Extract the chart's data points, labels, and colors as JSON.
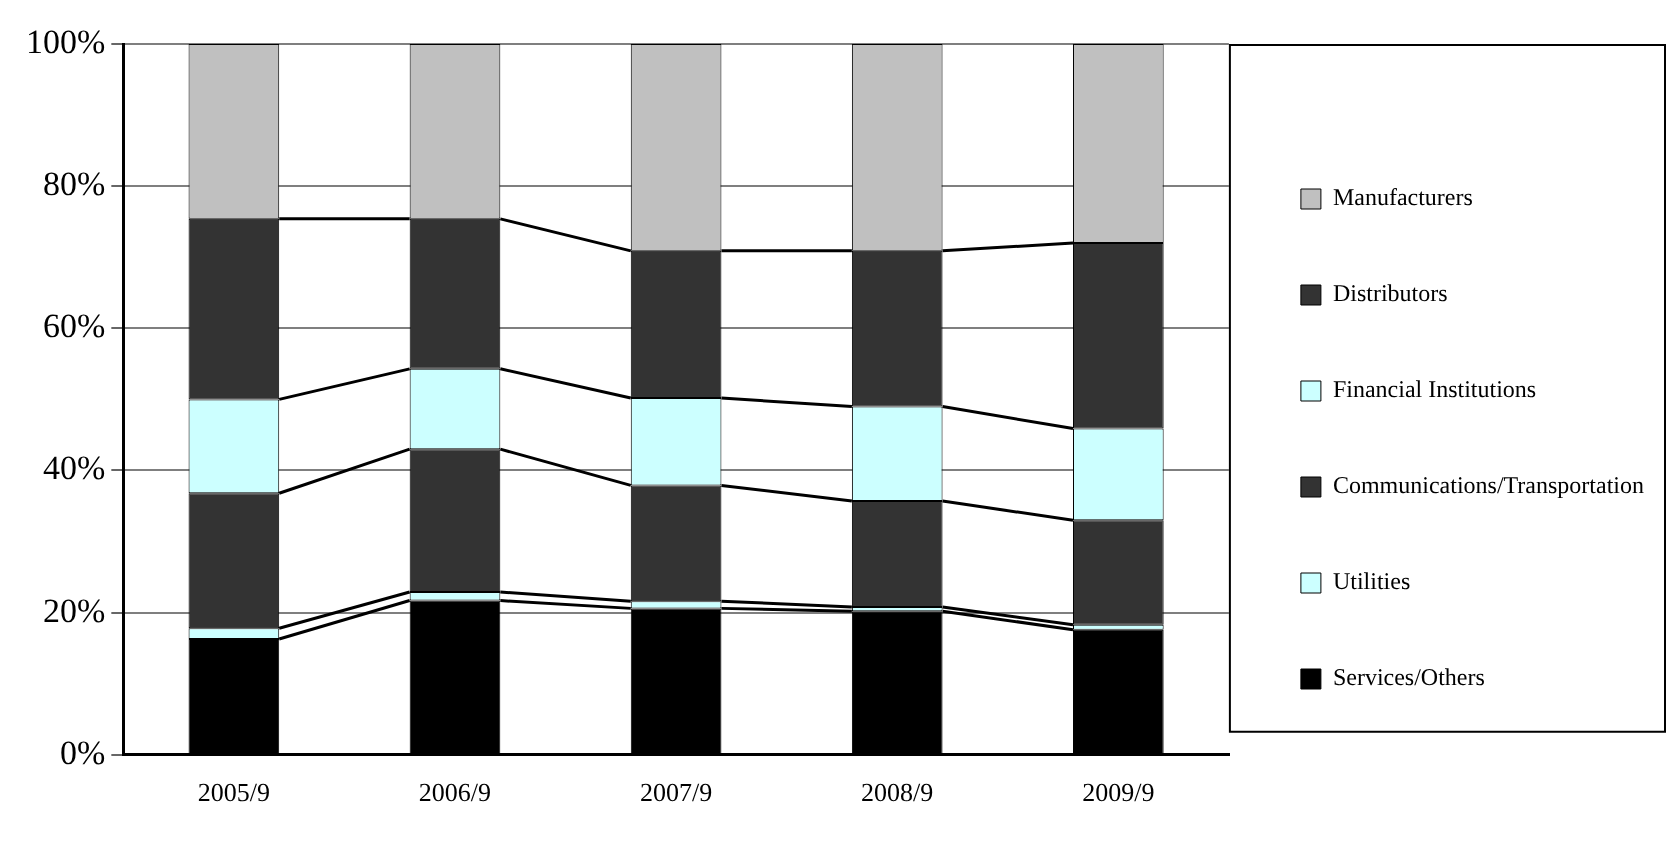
{
  "chart_data": {
    "type": "bar",
    "stacked": true,
    "categories": [
      "2005/9",
      "2006/9",
      "2007/9",
      "2008/9",
      "2009/9"
    ],
    "series": [
      {
        "name": "Services/Others",
        "color": "#000000",
        "values": [
          16.3,
          21.7,
          20.6,
          20.2,
          17.6
        ]
      },
      {
        "name": "Utilities",
        "color": "#ccffff",
        "values": [
          1.5,
          1.2,
          1.0,
          0.6,
          0.7
        ]
      },
      {
        "name": "Communications/Transportation",
        "color": "#333333",
        "values": [
          19.0,
          20.1,
          16.3,
          14.9,
          14.7
        ]
      },
      {
        "name": "Financial Institutions",
        "color": "#ccffff",
        "values": [
          13.2,
          11.3,
          12.3,
          13.3,
          12.9
        ]
      },
      {
        "name": "Distributors",
        "color": "#333333",
        "values": [
          25.4,
          21.1,
          20.7,
          21.9,
          26.1
        ]
      },
      {
        "name": "Manufacturers",
        "color": "#c0c0c0",
        "values": [
          24.6,
          24.6,
          29.1,
          29.1,
          28.0
        ]
      }
    ],
    "ylim": [
      0,
      100
    ],
    "yticks": [
      {
        "value": 0,
        "label": "0%"
      },
      {
        "value": 20,
        "label": "20%"
      },
      {
        "value": 40,
        "label": "40%"
      },
      {
        "value": 60,
        "label": "60%"
      },
      {
        "value": 80,
        "label": "80%"
      },
      {
        "value": 100,
        "label": "100%"
      }
    ],
    "grid": "y",
    "legend": "right"
  }
}
